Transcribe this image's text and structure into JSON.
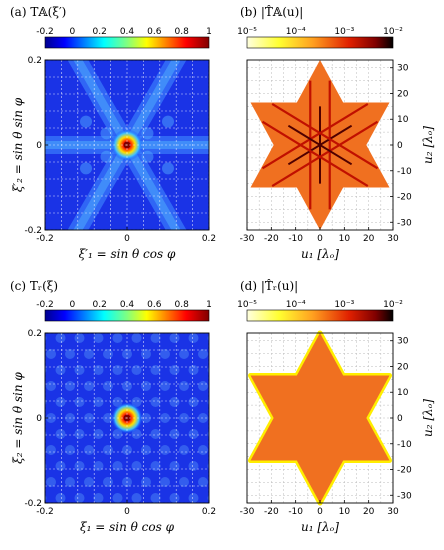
{
  "chart_data": [
    {
      "type": "heatmap",
      "title": "(a) T𝔸(ξ′)",
      "colorbar": {
        "scale": "linear",
        "colormap": "jet",
        "range": [
          -0.2,
          1.0
        ],
        "ticks": [
          "-0.2",
          "0",
          "0.2",
          "0.4",
          "0.6",
          "0.8",
          "1"
        ]
      },
      "xlabel": "ξ′₁ = sin θ cos φ",
      "ylabel": "ξ′₂ = sin θ sin φ",
      "xlim": [
        -0.2,
        0.2
      ],
      "ylim": [
        -0.2,
        0.2
      ],
      "xticks": [
        "-0.2",
        "0",
        "0.2"
      ],
      "yticks": [
        "0.2",
        "0",
        "-0.2"
      ],
      "grid": true,
      "features": {
        "peak": 1.0,
        "peak_at": [
          0,
          0
        ],
        "pattern": "six-fold star arms",
        "arm_level": 0.3
      }
    },
    {
      "type": "heatmap",
      "title": "(b) |T̂𝔸(u)|",
      "colorbar": {
        "scale": "log",
        "colormap": "hot",
        "range": [
          1e-05,
          0.01
        ],
        "ticks": [
          "10⁻⁵",
          "10⁻⁴",
          "10⁻³",
          "10⁻²"
        ]
      },
      "xlabel": "u₁ [λₒ]",
      "ylabel": "u₂ [λₒ]",
      "xlim": [
        -30,
        30
      ],
      "ylim": [
        -33,
        33
      ],
      "xticks": [
        "-30",
        "-20",
        "-10",
        "0",
        "10",
        "20",
        "30"
      ],
      "yticks": [
        "30",
        "20",
        "10",
        "0",
        "-10",
        "-20",
        "-30"
      ],
      "grid": true,
      "features": {
        "shape": "hexagram",
        "outer_radius": 33,
        "fill_level": 0.0001,
        "spoke_level": 0.003
      }
    },
    {
      "type": "heatmap",
      "title": "(c) Tᵣ(ξ)",
      "colorbar": {
        "scale": "linear",
        "colormap": "jet",
        "range": [
          -0.2,
          1.0
        ],
        "ticks": [
          "-0.2",
          "0",
          "0.2",
          "0.4",
          "0.6",
          "0.8",
          "1"
        ]
      },
      "xlabel": "ξ₁ = sin θ cos φ",
      "ylabel": "ξ₂ = sin θ sin φ",
      "xlim": [
        -0.2,
        0.2
      ],
      "ylim": [
        -0.2,
        0.2
      ],
      "xticks": [
        "-0.2",
        "0",
        "0.2"
      ],
      "yticks": [
        "0.2",
        "0",
        "-0.2"
      ],
      "grid": true,
      "features": {
        "peak": 1.0,
        "peak_at": [
          0,
          0
        ],
        "pattern": "hexagonal sidelobe lattice",
        "sidelobe_level": 0.05
      }
    },
    {
      "type": "heatmap",
      "title": "(d) |T̂ᵣ(u)|",
      "colorbar": {
        "scale": "log",
        "colormap": "hot",
        "range": [
          1e-05,
          0.01
        ],
        "ticks": [
          "10⁻⁵",
          "10⁻⁴",
          "10⁻³",
          "10⁻²"
        ]
      },
      "xlabel": "u₁ [λₒ]",
      "ylabel": "u₂ [λₒ]",
      "xlim": [
        -30,
        30
      ],
      "ylim": [
        -33,
        33
      ],
      "xticks": [
        "-30",
        "-20",
        "-10",
        "0",
        "10",
        "20",
        "30"
      ],
      "yticks": [
        "30",
        "20",
        "10",
        "0",
        "-10",
        "-20",
        "-30"
      ],
      "grid": true,
      "features": {
        "shape": "hexagram",
        "outer_radius": 33,
        "fill_level": 0.0001,
        "edge_level": 1e-05
      }
    }
  ]
}
